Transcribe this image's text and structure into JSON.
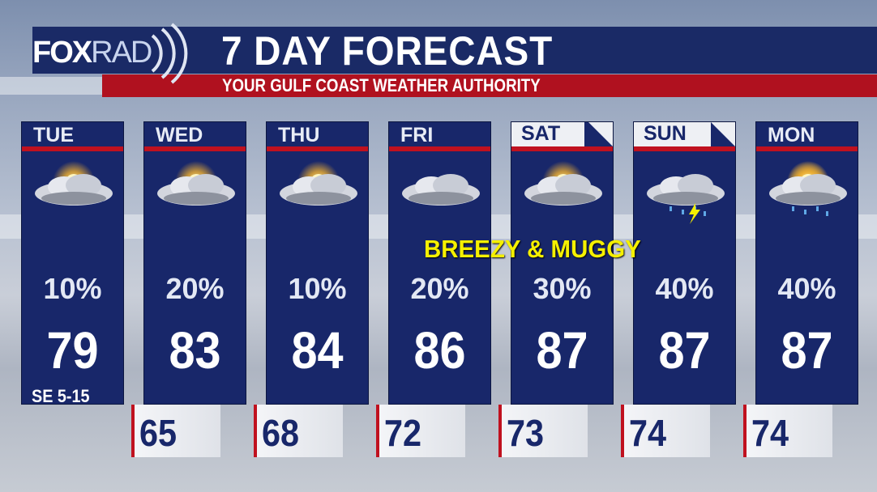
{
  "header": {
    "logo": "FOXRAD",
    "title": "7 DAY FORECAST",
    "subtitle": "YOUR GULF COAST WEATHER AUTHORITY"
  },
  "colors": {
    "navy": "#18276a",
    "red": "#c0111f",
    "note": "#f5f000"
  },
  "days": [
    {
      "day": "TUE",
      "icon": "partly-sunny-icon",
      "precip": "10%",
      "high": "79",
      "wind": "SE 5-15",
      "weekend": false
    },
    {
      "day": "WED",
      "icon": "partly-sunny-icon",
      "precip": "20%",
      "high": "83",
      "low": "65",
      "weekend": false
    },
    {
      "day": "THU",
      "icon": "partly-sunny-icon",
      "precip": "10%",
      "high": "84",
      "low": "68",
      "weekend": false
    },
    {
      "day": "FRI",
      "icon": "cloudy-icon",
      "precip": "20%",
      "high": "86",
      "low": "72",
      "weekend": false
    },
    {
      "day": "SAT",
      "icon": "partly-sunny-icon",
      "precip": "30%",
      "high": "87",
      "low": "73",
      "weekend": true
    },
    {
      "day": "SUN",
      "icon": "thunderstorm-icon",
      "precip": "40%",
      "high": "87",
      "low": "74",
      "weekend": true
    },
    {
      "day": "MON",
      "icon": "rain-icon",
      "precip": "40%",
      "high": "87",
      "low": "74",
      "weekend": false
    }
  ],
  "note": "BREEZY & MUGGY"
}
